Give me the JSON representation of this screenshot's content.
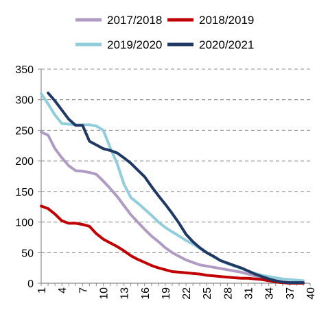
{
  "chart_data": {
    "type": "line",
    "xlim": [
      1,
      40
    ],
    "ylim": [
      0,
      350
    ],
    "yticks": [
      0,
      50,
      100,
      150,
      200,
      250,
      300,
      350
    ],
    "xticks": [
      1,
      4,
      7,
      10,
      13,
      16,
      19,
      22,
      25,
      28,
      31,
      34,
      37,
      40
    ],
    "grid": "horizontal dashed",
    "legend": "top",
    "series": [
      {
        "name": "2017/2018",
        "color": "#b09bc4",
        "x": [
          1,
          2,
          3,
          4,
          5,
          6,
          7,
          8,
          9,
          10,
          11,
          12,
          13,
          14,
          15,
          16,
          17,
          18,
          19,
          20,
          21,
          22,
          23,
          24,
          25,
          26,
          27,
          28,
          29,
          30,
          31,
          32,
          33,
          34,
          35,
          36,
          37,
          38,
          39
        ],
        "values": [
          247,
          242,
          220,
          205,
          192,
          184,
          183,
          181,
          178,
          167,
          155,
          142,
          127,
          112,
          100,
          88,
          77,
          68,
          58,
          50,
          44,
          38,
          34,
          30,
          28,
          26,
          24,
          22,
          20,
          18,
          15,
          12,
          9,
          6,
          4,
          2,
          1,
          0,
          0
        ]
      },
      {
        "name": "2018/2019",
        "color": "#c00000",
        "x": [
          1,
          2,
          3,
          4,
          5,
          6,
          7,
          8,
          9,
          10,
          11,
          12,
          13,
          14,
          15,
          16,
          17,
          18,
          19,
          20,
          21,
          22,
          23,
          24,
          25,
          26,
          27,
          28,
          29,
          30,
          31,
          32,
          33,
          34,
          35,
          36,
          37,
          38,
          39
        ],
        "values": [
          126,
          122,
          113,
          102,
          98,
          98,
          96,
          93,
          81,
          72,
          66,
          60,
          53,
          45,
          39,
          34,
          29,
          25,
          22,
          19,
          18,
          17,
          16,
          15,
          13,
          12,
          11,
          10,
          9,
          8,
          8,
          7,
          6,
          4,
          2,
          1,
          0,
          0,
          0
        ]
      },
      {
        "name": "2019/2020",
        "color": "#92cddc",
        "x": [
          1,
          2,
          3,
          4,
          5,
          6,
          7,
          8,
          9,
          10,
          11,
          12,
          13,
          14,
          15,
          16,
          17,
          18,
          19,
          20,
          21,
          22,
          23,
          24,
          25,
          26,
          27,
          28,
          29,
          30,
          31,
          32,
          33,
          34,
          35,
          36,
          37,
          38,
          39
        ],
        "values": [
          310,
          293,
          275,
          261,
          260,
          259,
          259,
          259,
          257,
          250,
          222,
          196,
          162,
          140,
          131,
          121,
          111,
          100,
          91,
          84,
          77,
          70,
          64,
          57,
          50,
          43,
          37,
          32,
          28,
          24,
          20,
          16,
          13,
          11,
          9,
          7,
          6,
          5,
          4
        ]
      },
      {
        "name": "2020/2021",
        "color": "#1f3864",
        "x": [
          2,
          3,
          4,
          5,
          6,
          7,
          8,
          9,
          10,
          11,
          12,
          13,
          14,
          15,
          16,
          17,
          18,
          19,
          20,
          21,
          22,
          23,
          24,
          25,
          26,
          27,
          28,
          29,
          30,
          31,
          32,
          33,
          34,
          35,
          36,
          37,
          38,
          39
        ],
        "values": [
          311,
          298,
          283,
          268,
          258,
          258,
          232,
          226,
          220,
          217,
          213,
          205,
          196,
          185,
          174,
          158,
          143,
          129,
          114,
          98,
          80,
          68,
          58,
          50,
          44,
          37,
          33,
          29,
          25,
          20,
          15,
          11,
          7,
          4,
          2,
          1,
          1,
          1
        ]
      }
    ]
  }
}
